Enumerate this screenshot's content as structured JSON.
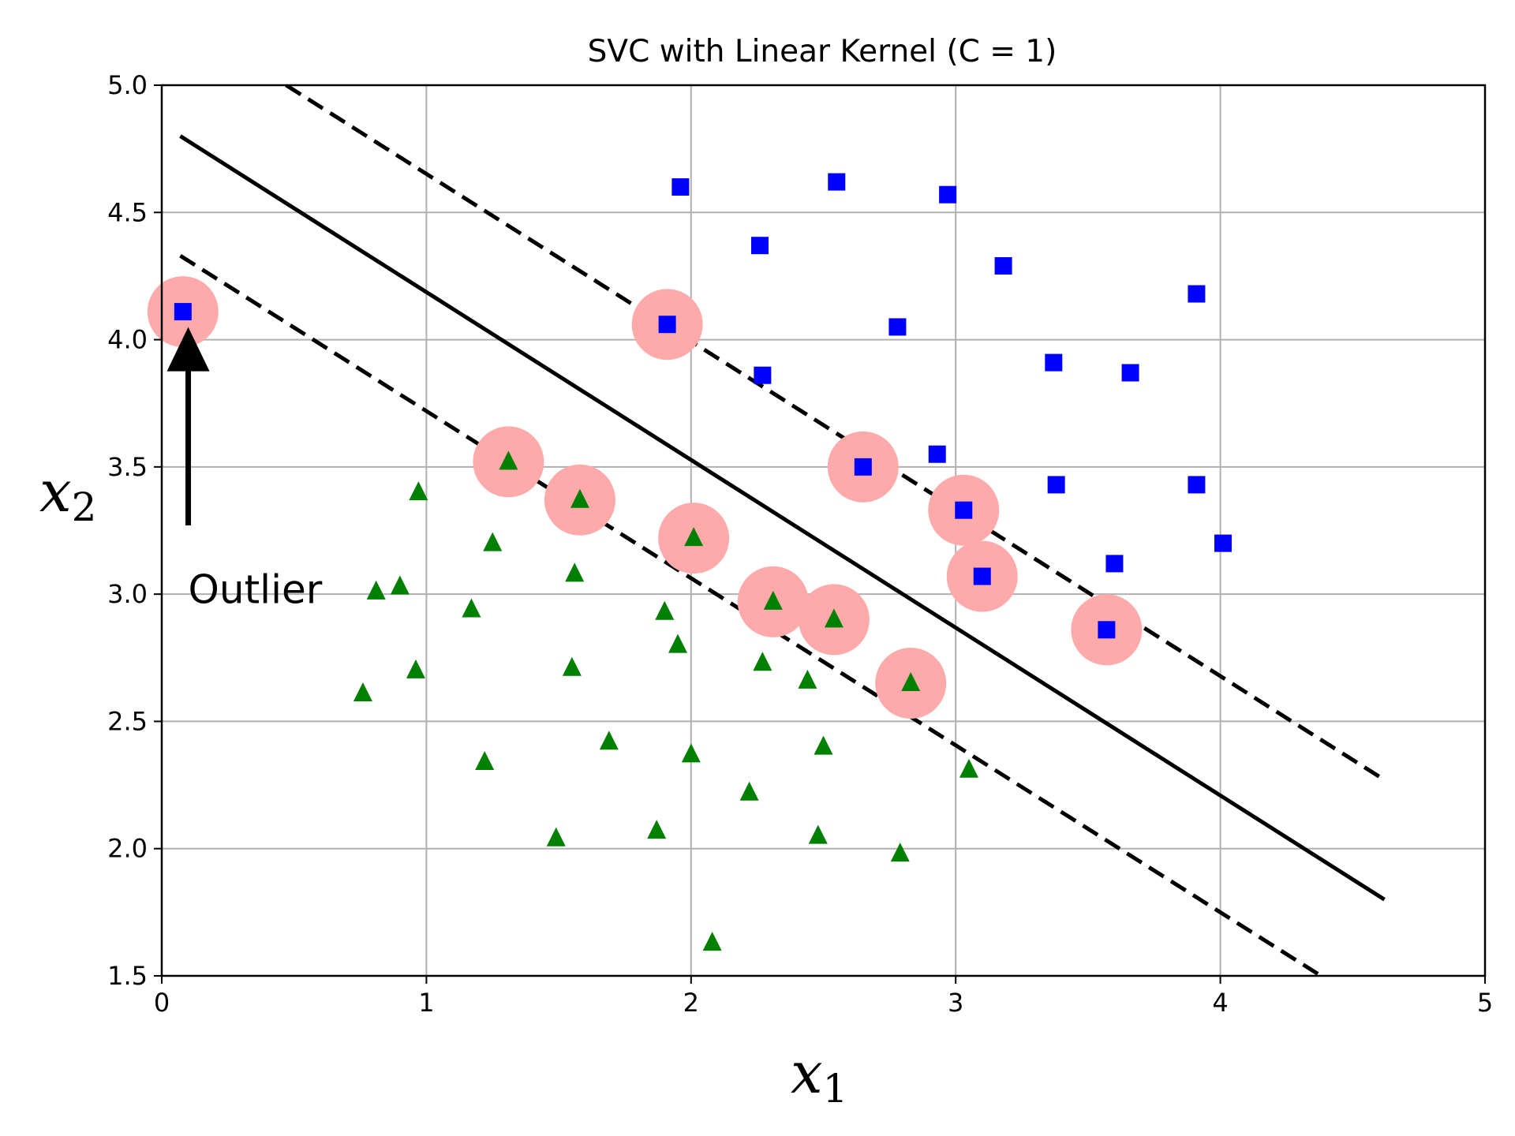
{
  "chart_data": {
    "type": "scatter",
    "title": "SVC with Linear Kernel (C = 1)",
    "xlabel": "x",
    "xlabel_sub": "1",
    "ylabel": "x",
    "ylabel_sub": "2",
    "xlim": [
      0,
      5
    ],
    "ylim": [
      1.5,
      5.0
    ],
    "xticks": [
      0,
      1,
      2,
      3,
      4,
      5
    ],
    "xtick_labels": [
      "0",
      "1",
      "2",
      "3",
      "4",
      "5"
    ],
    "yticks": [
      1.5,
      2.0,
      2.5,
      3.0,
      3.5,
      4.0,
      4.5,
      5.0
    ],
    "ytick_labels": [
      "1.5",
      "2.0",
      "2.5",
      "3.0",
      "3.5",
      "4.0",
      "4.5",
      "5.0"
    ],
    "grid": true,
    "colors": {
      "class1": "#0000ff",
      "class0": "#008000",
      "support_vectors": "#ffaaaa",
      "boundary": "#000000"
    },
    "series": [
      {
        "marker": "square",
        "color": "#0000ff",
        "points": [
          [
            1.96,
            4.6
          ],
          [
            2.55,
            4.62
          ],
          [
            2.97,
            4.57
          ],
          [
            2.26,
            4.37
          ],
          [
            3.18,
            4.29
          ],
          [
            3.91,
            4.18
          ],
          [
            0.08,
            4.11
          ],
          [
            1.91,
            4.06
          ],
          [
            2.78,
            4.05
          ],
          [
            3.37,
            3.91
          ],
          [
            3.66,
            3.87
          ],
          [
            2.27,
            3.86
          ],
          [
            2.93,
            3.55
          ],
          [
            2.65,
            3.5
          ],
          [
            3.38,
            3.43
          ],
          [
            3.91,
            3.43
          ],
          [
            3.03,
            3.33
          ],
          [
            4.01,
            3.2
          ],
          [
            3.6,
            3.12
          ],
          [
            3.1,
            3.07
          ],
          [
            3.57,
            2.86
          ]
        ]
      },
      {
        "marker": "triangle",
        "color": "#008000",
        "points": [
          [
            1.31,
            3.52
          ],
          [
            0.97,
            3.4
          ],
          [
            1.58,
            3.37
          ],
          [
            2.01,
            3.22
          ],
          [
            1.25,
            3.2
          ],
          [
            1.56,
            3.08
          ],
          [
            0.9,
            3.03
          ],
          [
            0.81,
            3.01
          ],
          [
            2.31,
            2.97
          ],
          [
            1.17,
            2.94
          ],
          [
            1.9,
            2.93
          ],
          [
            2.54,
            2.9
          ],
          [
            1.95,
            2.8
          ],
          [
            0.96,
            2.7
          ],
          [
            1.55,
            2.71
          ],
          [
            2.27,
            2.73
          ],
          [
            2.44,
            2.66
          ],
          [
            2.83,
            2.65
          ],
          [
            0.76,
            2.61
          ],
          [
            1.69,
            2.42
          ],
          [
            2.5,
            2.4
          ],
          [
            2.0,
            2.37
          ],
          [
            1.22,
            2.34
          ],
          [
            3.05,
            2.31
          ],
          [
            2.22,
            2.22
          ],
          [
            1.87,
            2.07
          ],
          [
            2.48,
            2.05
          ],
          [
            1.49,
            2.04
          ],
          [
            2.79,
            1.98
          ],
          [
            2.08,
            1.63
          ]
        ]
      }
    ],
    "support_vectors": [
      [
        0.08,
        4.11
      ],
      [
        1.91,
        4.06
      ],
      [
        2.65,
        3.5
      ],
      [
        3.03,
        3.33
      ],
      [
        3.1,
        3.07
      ],
      [
        3.57,
        2.86
      ],
      [
        1.31,
        3.52
      ],
      [
        1.58,
        3.37
      ],
      [
        2.01,
        3.22
      ],
      [
        2.31,
        2.97
      ],
      [
        2.54,
        2.9
      ],
      [
        2.83,
        2.65
      ]
    ],
    "lines": [
      {
        "style": "solid",
        "points": [
          [
            0.07,
            4.8
          ],
          [
            4.62,
            1.8
          ]
        ]
      },
      {
        "style": "dashed",
        "points": [
          [
            0.47,
            5.0
          ],
          [
            4.62,
            2.27
          ]
        ]
      },
      {
        "style": "dashed",
        "points": [
          [
            0.07,
            4.33
          ],
          [
            4.38,
            1.5
          ]
        ]
      }
    ],
    "annotation": {
      "text": "Outlier",
      "arrow_from": [
        0.1,
        3.27
      ],
      "arrow_to": [
        0.1,
        4.0
      ],
      "text_pos": [
        0.1,
        3.02
      ]
    }
  }
}
